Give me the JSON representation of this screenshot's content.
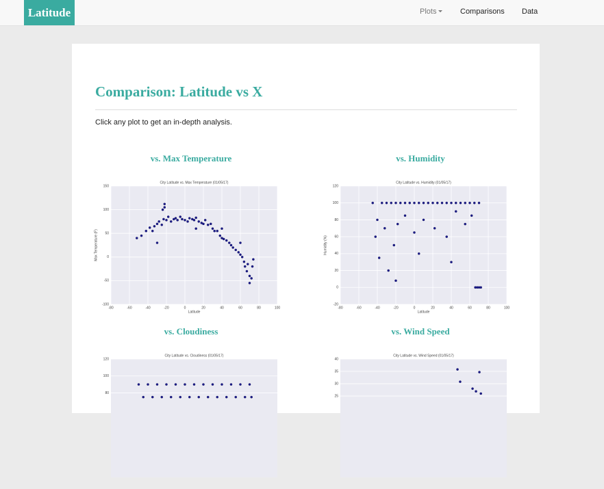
{
  "nav": {
    "brand": "Latitude",
    "items": [
      "Plots",
      "Comparisons",
      "Data"
    ]
  },
  "heading": "Comparison: Latitude vs X",
  "intro": "Click any plot to get an in-depth analysis.",
  "plots": [
    {
      "title": "vs. Max Temperature",
      "chart": {
        "type": "scatter",
        "title": "City Latitude vs. Max Temperature (01/05/17)",
        "xlabel": "Latitude",
        "ylabel": "Max Temperature (F)",
        "xlim": [
          -80,
          100
        ],
        "ylim": [
          -100,
          150
        ],
        "xticks": [
          -80,
          -60,
          -40,
          -20,
          0,
          20,
          40,
          60,
          80,
          100
        ],
        "yticks": [
          -100,
          -50,
          0,
          50,
          100,
          150
        ],
        "color": "#1b1b8a",
        "x": [
          -52,
          -47,
          -42,
          -38,
          -35,
          -33,
          -30,
          -28,
          -25,
          -23,
          -22,
          -20,
          -18,
          -15,
          -12,
          -10,
          -8,
          -5,
          -3,
          0,
          3,
          5,
          8,
          10,
          12,
          15,
          18,
          20,
          22,
          25,
          28,
          30,
          32,
          35,
          38,
          40,
          42,
          45,
          48,
          50,
          52,
          55,
          58,
          60,
          62,
          64,
          65,
          67,
          68,
          70,
          70,
          72,
          73,
          74,
          -24,
          -22,
          -30,
          12,
          40,
          60
        ],
        "y": [
          40,
          45,
          55,
          62,
          55,
          65,
          70,
          75,
          68,
          80,
          112,
          78,
          85,
          75,
          80,
          82,
          78,
          85,
          80,
          78,
          75,
          82,
          80,
          78,
          83,
          75,
          72,
          70,
          78,
          68,
          70,
          60,
          55,
          55,
          45,
          40,
          38,
          35,
          30,
          25,
          20,
          15,
          10,
          5,
          0,
          -10,
          -20,
          -30,
          -15,
          -40,
          -55,
          -45,
          -20,
          -5,
          100,
          105,
          30,
          60,
          60,
          30
        ]
      }
    },
    {
      "title": "vs. Humidity",
      "chart": {
        "type": "scatter",
        "title": "City Latitude vs. Humidity (01/05/17)",
        "xlabel": "Latitude",
        "ylabel": "Humidity (%)",
        "xlim": [
          -80,
          100
        ],
        "ylim": [
          -20,
          120
        ],
        "xticks": [
          -80,
          -60,
          -40,
          -20,
          0,
          20,
          40,
          60,
          80,
          100
        ],
        "yticks": [
          -20,
          0,
          20,
          40,
          60,
          80,
          100,
          120
        ],
        "color": "#1b1b8a",
        "x": [
          -45,
          -40,
          -35,
          -30,
          -25,
          -20,
          -15,
          -10,
          -5,
          0,
          5,
          10,
          15,
          20,
          25,
          30,
          35,
          40,
          45,
          50,
          55,
          60,
          65,
          70,
          -42,
          -38,
          -32,
          -22,
          -18,
          -10,
          0,
          10,
          22,
          35,
          45,
          55,
          62,
          66,
          68,
          70,
          72,
          -28,
          -20,
          5,
          40
        ],
        "y": [
          100,
          80,
          100,
          100,
          100,
          100,
          100,
          100,
          100,
          100,
          100,
          100,
          100,
          100,
          100,
          100,
          100,
          100,
          100,
          100,
          100,
          100,
          100,
          100,
          60,
          35,
          70,
          50,
          75,
          85,
          65,
          80,
          70,
          60,
          90,
          75,
          85,
          0,
          0,
          0,
          0,
          20,
          8,
          40,
          30
        ]
      }
    },
    {
      "title": "vs. Cloudiness",
      "chart": {
        "type": "scatter",
        "title": "City Latitude vs. Cloudiness (01/05/17)",
        "xlim": [
          -80,
          100
        ],
        "ylim": [
          -20,
          120
        ],
        "yticks": [
          80,
          100,
          120
        ],
        "color": "#1b1b8a",
        "x": [
          -50,
          -40,
          -30,
          -20,
          -10,
          0,
          10,
          20,
          30,
          40,
          50,
          60,
          70,
          -45,
          -35,
          -25,
          -15,
          -5,
          5,
          15,
          25,
          35,
          45,
          55,
          65,
          72
        ],
        "y": [
          90,
          90,
          90,
          90,
          90,
          90,
          90,
          90,
          90,
          90,
          90,
          90,
          90,
          75,
          75,
          75,
          75,
          75,
          75,
          75,
          75,
          75,
          75,
          75,
          75,
          75
        ]
      }
    },
    {
      "title": "vs. Wind Speed",
      "chart": {
        "type": "scatter",
        "title": "City Latitude vs. Wind Speed (01/05/17)",
        "xlim": [
          -80,
          100
        ],
        "ylim": [
          -8,
          40
        ],
        "yticks": [
          25,
          30,
          35,
          40
        ],
        "color": "#1b1b8a",
        "x": [
          46.7,
          49.6,
          70.4,
          63,
          66.7,
          72
        ],
        "y": [
          35.8,
          30.8,
          34.7,
          28,
          26.9,
          26
        ]
      }
    }
  ]
}
